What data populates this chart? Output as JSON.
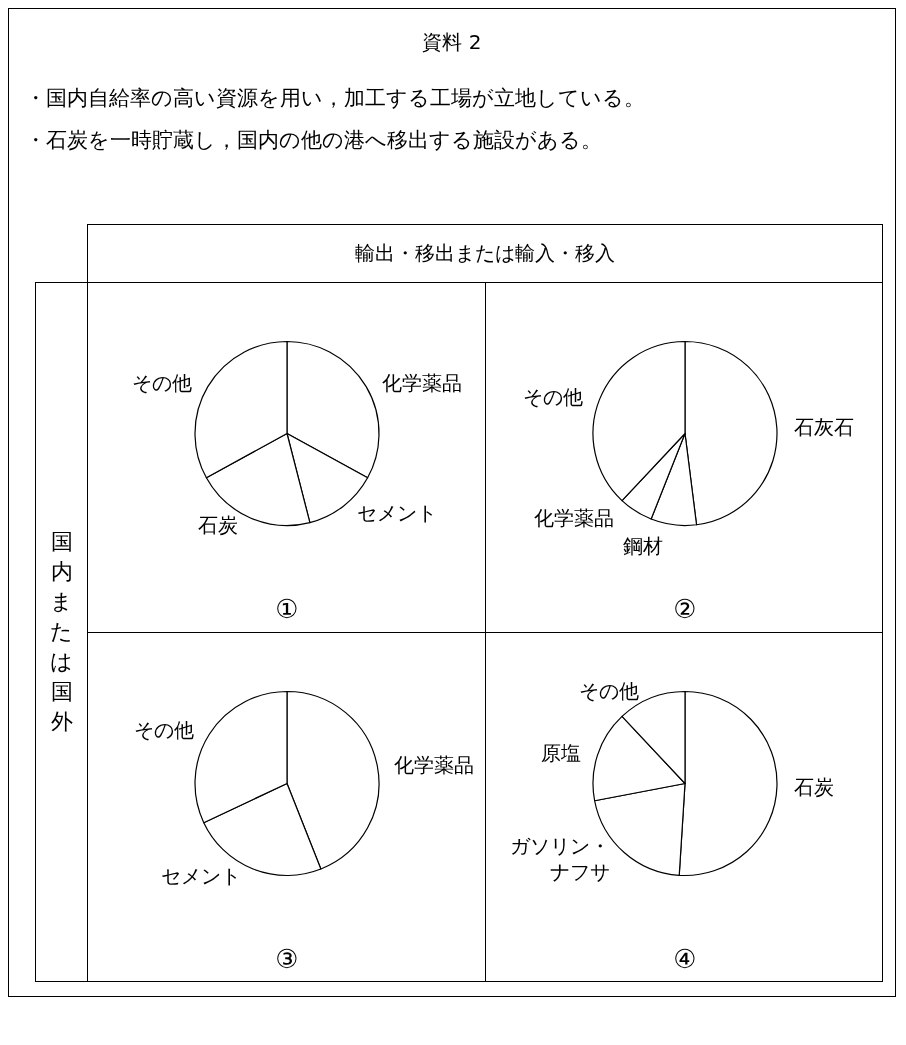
{
  "chart_data": [
    {
      "type": "other",
      "title": "資料 2",
      "annotations": [
        "・国内自給率の高い資源を用い，加工する工場が立地している。",
        "・石炭を一時貯蔵し，国内の他の港へ移出する施設がある。",
        "輸出・移出または輸入・移入",
        "国内または国外"
      ]
    },
    {
      "type": "pie",
      "title": "①",
      "categories": [
        "化学薬品",
        "セメント",
        "石炭",
        "その他"
      ],
      "values": [
        33,
        13,
        21,
        33
      ],
      "colors": [
        "#ffffff",
        "#ffffff",
        "#ffffff",
        "#ffffff"
      ]
    },
    {
      "type": "pie",
      "title": "②",
      "categories": [
        "石灰石",
        "鋼材",
        "化学薬品",
        "その他"
      ],
      "values": [
        48,
        8,
        6,
        38
      ],
      "colors": [
        "#ffffff",
        "#ffffff",
        "#ffffff",
        "#ffffff"
      ]
    },
    {
      "type": "pie",
      "title": "③",
      "categories": [
        "化学薬品",
        "セメント",
        "その他"
      ],
      "values": [
        44,
        24,
        32
      ],
      "colors": [
        "#ffffff",
        "#ffffff",
        "#ffffff"
      ]
    },
    {
      "type": "pie",
      "title": "④",
      "categories": [
        "石炭",
        "ガソリン・ナフサ",
        "原塩",
        "その他"
      ],
      "values": [
        51,
        21,
        16,
        12
      ],
      "colors": [
        "#ffffff",
        "#ffffff",
        "#ffffff",
        "#ffffff"
      ]
    }
  ]
}
